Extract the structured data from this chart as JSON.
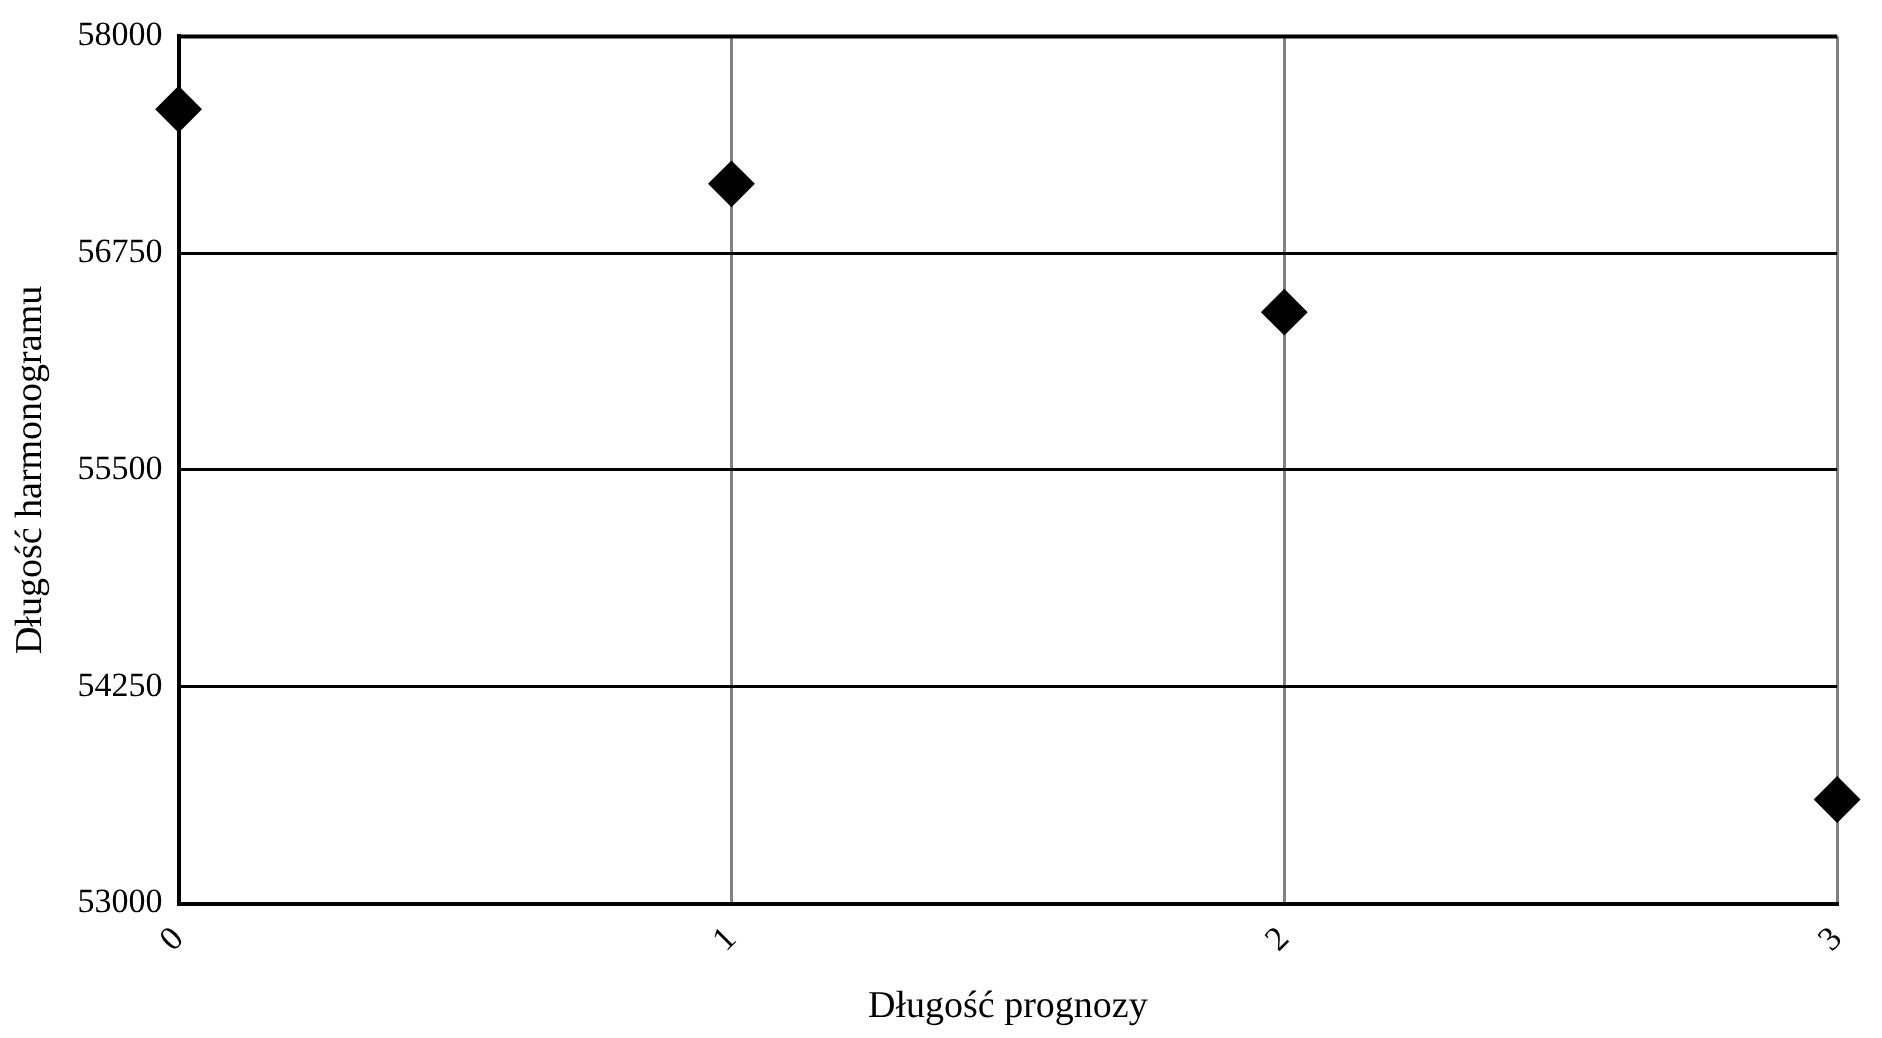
{
  "chart_data": {
    "type": "scatter",
    "xlabel": "Długość prognozy",
    "ylabel": "Długość harmonogramu",
    "x": [
      0,
      1,
      2,
      3
    ],
    "series": [
      {
        "color": "#000000",
        "values": [
          57580,
          57150,
          56410,
          53600
        ]
      }
    ],
    "xlim": [
      0,
      3
    ],
    "xticks": [
      0,
      1,
      2,
      3
    ],
    "ylim": [
      53000,
      58000
    ],
    "yticks": [
      53000,
      54250,
      55500,
      56750,
      58000
    ],
    "grid": true,
    "legend": false,
    "marker": "diamond"
  }
}
